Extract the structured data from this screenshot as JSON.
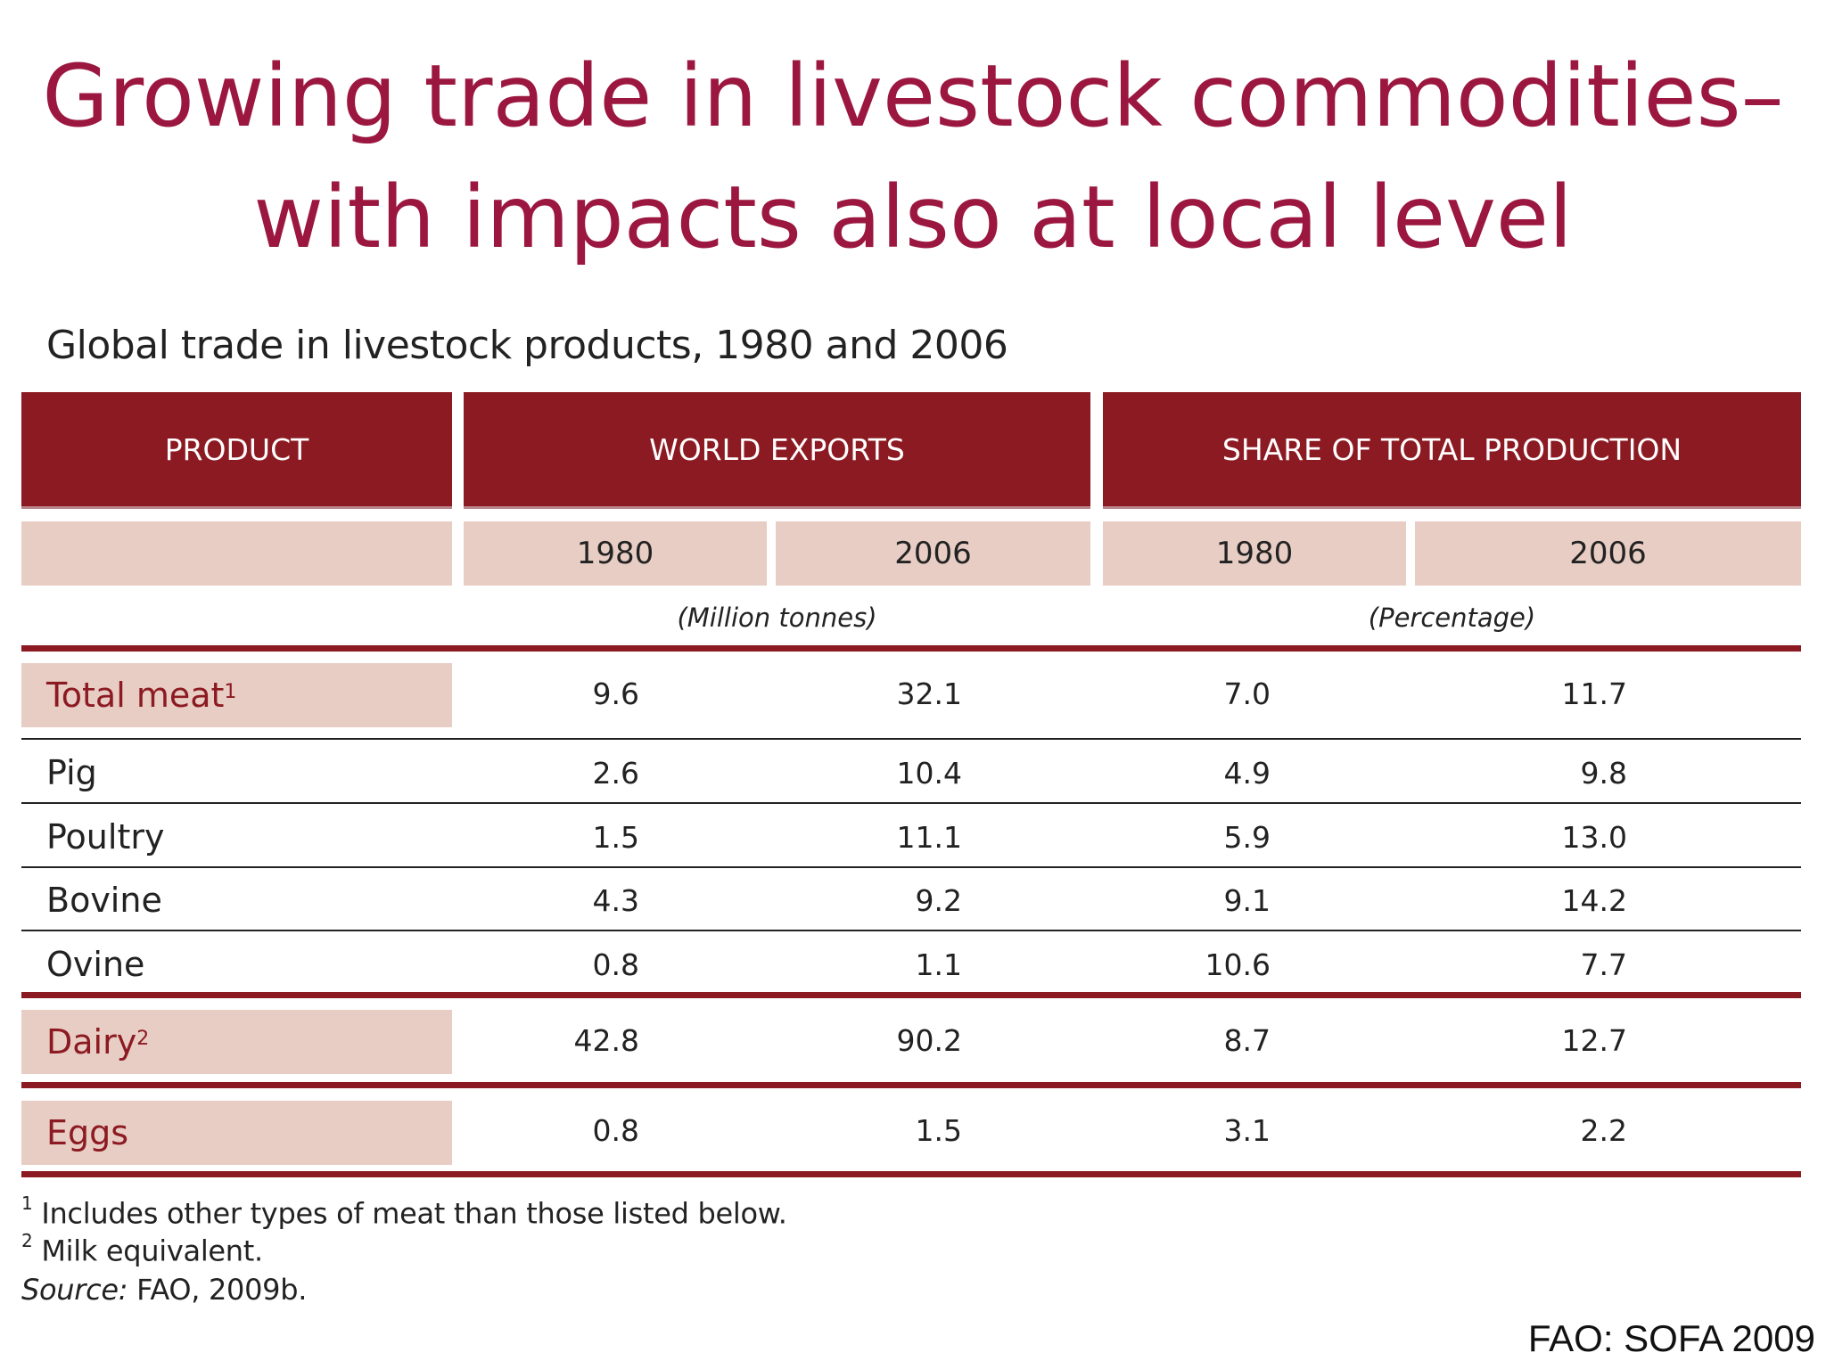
{
  "slide": {
    "title_line1": "Growing trade in livestock commodities–",
    "title_line2": "with impacts also at local level",
    "credit": "FAO: SOFA 2009"
  },
  "table": {
    "title": "Global trade in livestock products, 1980 and 2006",
    "headers": {
      "product": "PRODUCT",
      "world_exports": "WORLD EXPORTS",
      "share": "SHARE OF TOTAL PRODUCTION"
    },
    "years": [
      "1980",
      "2006",
      "1980",
      "2006"
    ],
    "units": {
      "exports": "(Million tonnes)",
      "share": "(Percentage)"
    },
    "rows": [
      {
        "label": "Total meat",
        "sup": "1",
        "values": [
          "9.6",
          "32.1",
          "7.0",
          "11.7"
        ]
      },
      {
        "label": "Pig",
        "values": [
          "2.6",
          "10.4",
          "4.9",
          "9.8"
        ]
      },
      {
        "label": "Poultry",
        "values": [
          "1.5",
          "11.1",
          "5.9",
          "13.0"
        ]
      },
      {
        "label": "Bovine",
        "values": [
          "4.3",
          "9.2",
          "9.1",
          "14.2"
        ]
      },
      {
        "label": "Ovine",
        "values": [
          "0.8",
          "1.1",
          "10.6",
          "7.7"
        ]
      },
      {
        "label": "Dairy",
        "sup": "2",
        "values": [
          "42.8",
          "90.2",
          "8.7",
          "12.7"
        ]
      },
      {
        "label": "Eggs",
        "values": [
          "0.8",
          "1.5",
          "3.1",
          "2.2"
        ]
      }
    ],
    "footnotes": {
      "note1_mark": "1",
      "note1": "Includes other types of meat than those listed below.",
      "note2_mark": "2",
      "note2": "Milk equivalent.",
      "source_label": "Source:",
      "source": "FAO, 2009b."
    }
  },
  "colors": {
    "title": "#9b1740",
    "header_bg": "#8c1a22",
    "subheader_bg": "#e8cdc4"
  }
}
